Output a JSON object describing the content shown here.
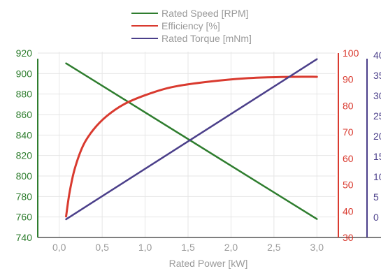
{
  "chart_data": {
    "type": "line",
    "xlabel": "Rated Power [kW]",
    "x_ticks": [
      "0,0",
      "0,5",
      "1,0",
      "1,5",
      "2,0",
      "2,5",
      "3,0"
    ],
    "xlim": [
      -0.25,
      3.25
    ],
    "legend_position": "top-center",
    "grid": true,
    "axes": [
      {
        "id": "speed",
        "side": "left",
        "color": "#2e7d2e",
        "range": [
          740,
          920
        ],
        "ticks": [
          "740",
          "760",
          "780",
          "800",
          "820",
          "840",
          "860",
          "880",
          "900",
          "920"
        ]
      },
      {
        "id": "efficiency",
        "side": "right",
        "color": "#d93a2f",
        "range": [
          30,
          100
        ],
        "ticks": [
          "30",
          "40",
          "50",
          "60",
          "70",
          "80",
          "90",
          "100"
        ]
      },
      {
        "id": "torque",
        "side": "right-outer",
        "color": "#4b3f8a",
        "range": [
          -5,
          40.5
        ],
        "ticks": [
          "0",
          "5",
          "10",
          "15",
          "20",
          "25",
          "30",
          "35",
          "40"
        ]
      }
    ],
    "series": [
      {
        "name": "Rated Speed [RPM]",
        "axis": "speed",
        "color": "#2e7d2e",
        "x": [
          0.08,
          3.0
        ],
        "y": [
          910,
          758
        ]
      },
      {
        "name": "Efficiency [%]",
        "axis": "efficiency",
        "color": "#d93a2f",
        "x": [
          0.08,
          0.12,
          0.18,
          0.28,
          0.4,
          0.55,
          0.75,
          1.0,
          1.3,
          1.7,
          2.2,
          2.7,
          3.0
        ],
        "y": [
          38,
          47,
          56,
          65,
          71,
          76,
          80.5,
          84,
          87,
          89,
          90.5,
          91,
          91
        ]
      },
      {
        "name": "Rated Torque [mNm]",
        "axis": "torque",
        "color": "#4b3f8a",
        "x": [
          0.08,
          3.0
        ],
        "y": [
          -0.5,
          39
        ]
      }
    ]
  }
}
